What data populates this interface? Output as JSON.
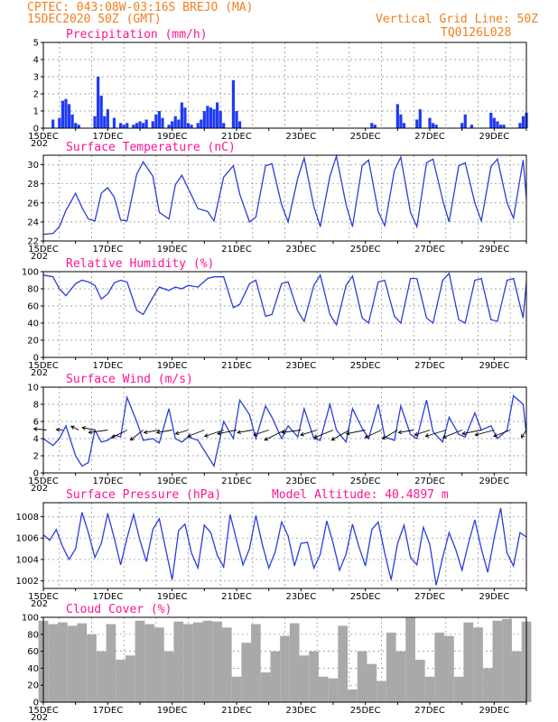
{
  "header": {
    "line1_left": "CPTEC:  043:08W-03:16S  BREJO (MA)",
    "line2_left": "15DEC2020 50Z (GMT)",
    "line1_right": "Vertical Grid Line: 50Z",
    "line2_right": "TQ0126L028"
  },
  "x_axis": {
    "day_start": 15,
    "day_end": 30,
    "tick_labels": [
      "15DEC",
      "17DEC",
      "19DEC",
      "21DEC",
      "23DEC",
      "25DEC",
      "27DEC",
      "29DEC"
    ],
    "tick_days": [
      15,
      17,
      19,
      21,
      23,
      25,
      27,
      29
    ],
    "year_fragment": "202"
  },
  "colors": {
    "line": "#2a3fd9",
    "precip": "#1f3bf5",
    "cloud": "#a9a9a9",
    "header": "#f08020",
    "title": "#ff1493"
  },
  "chart_data": [
    {
      "type": "bar",
      "title": "Precipitation (mm/h)",
      "ylim": [
        0,
        5
      ],
      "yticks": [
        0,
        1,
        2,
        3,
        4,
        5
      ],
      "x": [
        15.3,
        15.5,
        15.6,
        15.7,
        15.8,
        15.9,
        16.0,
        16.1,
        16.6,
        16.7,
        16.8,
        16.9,
        17.0,
        17.2,
        17.4,
        17.5,
        17.6,
        17.8,
        17.9,
        18.0,
        18.1,
        18.2,
        18.4,
        18.5,
        18.6,
        18.7,
        18.9,
        19.0,
        19.1,
        19.2,
        19.3,
        19.4,
        19.5,
        19.6,
        19.8,
        19.9,
        20.0,
        20.1,
        20.2,
        20.3,
        20.4,
        20.5,
        20.6,
        20.9,
        21.0,
        21.1,
        25.2,
        25.3,
        26.0,
        26.1,
        26.2,
        26.6,
        26.7,
        27.0,
        27.1,
        27.2,
        28.0,
        28.1,
        28.3,
        28.9,
        29.0,
        29.1,
        29.2,
        29.3,
        29.8,
        29.9,
        30.0
      ],
      "values": [
        0.5,
        0.6,
        1.6,
        1.7,
        1.4,
        0.8,
        0.3,
        0.2,
        0.7,
        3.0,
        1.9,
        0.7,
        1.1,
        0.6,
        0.3,
        0.2,
        0.3,
        0.2,
        0.3,
        0.4,
        0.3,
        0.5,
        0.4,
        0.8,
        1.0,
        0.6,
        0.2,
        0.4,
        0.7,
        0.5,
        1.5,
        1.2,
        0.3,
        0.2,
        0.3,
        0.5,
        1.0,
        1.3,
        1.2,
        1.1,
        1.5,
        1.0,
        0.3,
        2.8,
        1.0,
        0.4,
        0.3,
        0.2,
        1.4,
        0.8,
        0.3,
        0.5,
        1.1,
        0.6,
        0.3,
        0.2,
        0.3,
        0.8,
        0.2,
        0.9,
        0.6,
        0.4,
        0.2,
        0.2,
        0.3,
        0.7,
        0.9
      ]
    },
    {
      "type": "line",
      "title": "Surface Temperature (nC)",
      "ylim": [
        22,
        31
      ],
      "yticks": [
        22,
        24,
        26,
        28,
        30
      ],
      "x": [
        15.0,
        15.3,
        15.5,
        15.7,
        16.0,
        16.2,
        16.4,
        16.6,
        16.8,
        17.0,
        17.2,
        17.4,
        17.6,
        17.9,
        18.1,
        18.4,
        18.6,
        18.9,
        19.1,
        19.3,
        19.5,
        19.8,
        20.1,
        20.3,
        20.6,
        20.9,
        21.1,
        21.4,
        21.6,
        21.9,
        22.1,
        22.4,
        22.6,
        22.9,
        23.1,
        23.4,
        23.6,
        23.9,
        24.1,
        24.4,
        24.6,
        24.9,
        25.1,
        25.4,
        25.6,
        25.9,
        26.1,
        26.4,
        26.6,
        26.9,
        27.1,
        27.4,
        27.6,
        27.9,
        28.1,
        28.4,
        28.6,
        28.9,
        29.1,
        29.4,
        29.6,
        29.9,
        30.0
      ],
      "values": [
        22.7,
        22.8,
        23.5,
        25.2,
        27.0,
        25.5,
        24.3,
        24.1,
        27.0,
        27.6,
        26.6,
        24.2,
        24.1,
        29.0,
        30.3,
        28.8,
        25.0,
        24.3,
        27.9,
        28.9,
        27.5,
        25.4,
        25.1,
        24.1,
        28.7,
        29.9,
        26.9,
        24.0,
        24.5,
        29.9,
        30.1,
        25.8,
        24.0,
        28.6,
        30.7,
        25.6,
        23.5,
        28.8,
        30.9,
        25.8,
        23.5,
        29.9,
        30.5,
        25.1,
        23.6,
        29.4,
        30.8,
        25.0,
        23.5,
        30.2,
        30.6,
        26.3,
        24.0,
        29.9,
        30.2,
        26.0,
        24.1,
        29.8,
        30.6,
        26.0,
        24.4,
        30.5,
        26.5
      ]
    },
    {
      "type": "line",
      "title": "Relative Humidity (%)",
      "ylim": [
        0,
        100
      ],
      "yticks": [
        0,
        20,
        40,
        60,
        80,
        100
      ],
      "x": [
        15.0,
        15.3,
        15.5,
        15.7,
        16.0,
        16.2,
        16.4,
        16.6,
        16.8,
        17.0,
        17.2,
        17.4,
        17.6,
        17.9,
        18.1,
        18.4,
        18.6,
        18.9,
        19.1,
        19.3,
        19.5,
        19.8,
        20.1,
        20.3,
        20.6,
        20.9,
        21.1,
        21.4,
        21.6,
        21.9,
        22.1,
        22.4,
        22.6,
        22.9,
        23.1,
        23.4,
        23.6,
        23.9,
        24.1,
        24.4,
        24.6,
        24.9,
        25.1,
        25.4,
        25.6,
        25.9,
        26.1,
        26.4,
        26.6,
        26.9,
        27.1,
        27.4,
        27.6,
        27.9,
        28.1,
        28.4,
        28.6,
        28.9,
        29.1,
        29.4,
        29.6,
        29.9,
        30.0
      ],
      "values": [
        96,
        94,
        80,
        72,
        86,
        90,
        88,
        84,
        68,
        74,
        87,
        90,
        88,
        55,
        50,
        70,
        82,
        78,
        82,
        80,
        84,
        82,
        92,
        94,
        94,
        58,
        62,
        86,
        90,
        48,
        50,
        86,
        88,
        54,
        42,
        84,
        96,
        50,
        38,
        84,
        95,
        46,
        40,
        88,
        90,
        48,
        40,
        92,
        92,
        46,
        40,
        90,
        98,
        44,
        40,
        90,
        92,
        44,
        42,
        90,
        92,
        46,
        88
      ]
    },
    {
      "type": "line",
      "title": "Surface Wind (m/s)",
      "ylim": [
        0,
        10
      ],
      "yticks": [
        0,
        2,
        4,
        6,
        8,
        10
      ],
      "x": [
        15.0,
        15.3,
        15.5,
        15.7,
        16.0,
        16.2,
        16.4,
        16.6,
        16.8,
        17.0,
        17.2,
        17.4,
        17.6,
        17.9,
        18.1,
        18.4,
        18.6,
        18.9,
        19.1,
        19.3,
        19.5,
        19.8,
        20.1,
        20.3,
        20.6,
        20.9,
        21.1,
        21.4,
        21.6,
        21.9,
        22.1,
        22.4,
        22.6,
        22.9,
        23.1,
        23.4,
        23.6,
        23.9,
        24.1,
        24.4,
        24.6,
        24.9,
        25.1,
        25.4,
        25.6,
        25.9,
        26.1,
        26.4,
        26.6,
        26.9,
        27.1,
        27.4,
        27.6,
        27.9,
        28.1,
        28.4,
        28.6,
        28.9,
        29.1,
        29.4,
        29.6,
        29.9,
        30.0
      ],
      "values": [
        4.0,
        3.2,
        4.0,
        5.5,
        2.0,
        0.8,
        1.2,
        5.0,
        3.6,
        3.8,
        4.4,
        4.2,
        8.8,
        6.0,
        3.8,
        4.0,
        3.5,
        7.5,
        4.0,
        3.6,
        4.2,
        3.8,
        2.0,
        0.8,
        6.0,
        4.0,
        8.5,
        6.8,
        4.0,
        7.8,
        6.5,
        4.0,
        5.5,
        4.2,
        7.5,
        4.0,
        3.8,
        8.0,
        5.0,
        3.6,
        7.5,
        5.2,
        4.0,
        8.0,
        4.2,
        3.8,
        7.8,
        4.5,
        4.0,
        8.5,
        4.8,
        3.6,
        6.5,
        4.5,
        4.2,
        7.0,
        5.0,
        5.5,
        4.0,
        5.0,
        9.0,
        8.0,
        4.5
      ],
      "arrows": {
        "x": [
          15.1,
          15.6,
          16.1,
          16.6,
          17.0,
          17.6,
          18.1,
          18.6,
          19.0,
          19.5,
          20.0,
          20.6,
          21.0,
          21.5,
          22.0,
          22.5,
          23.0,
          23.5,
          24.0,
          24.5,
          25.0,
          25.5,
          26.0,
          26.5,
          27.0,
          27.5,
          28.0,
          28.6,
          29.0,
          29.5,
          30.0
        ],
        "u": [
          -1,
          -0.5,
          -0.6,
          -1,
          -1.5,
          -1.2,
          -1,
          -1.2,
          -1.2,
          -1,
          -1.3,
          -1.5,
          -1.5,
          -1.2,
          -1.2,
          -1.6,
          -1.5,
          -1.3,
          -1.5,
          -1.4,
          -1.5,
          -1.3,
          -1.2,
          -1.2,
          -1.2,
          -1.6,
          -1.5,
          -1.5,
          -1.5,
          -1.3,
          -0.4
        ],
        "v": [
          0.1,
          0.05,
          0.3,
          0.2,
          -0.2,
          -0.6,
          -0.8,
          -0.2,
          -0.2,
          -0.3,
          -0.5,
          -0.5,
          -0.3,
          -0.2,
          -0.4,
          -0.8,
          -0.2,
          -0.4,
          -0.6,
          -0.8,
          -0.3,
          -0.6,
          -0.7,
          -0.2,
          -0.4,
          -0.5,
          -0.6,
          -0.3,
          -0.4,
          -0.5,
          -0.6
        ]
      }
    },
    {
      "type": "line",
      "title": "Surface Pressure (hPa)",
      "annotation": "Model Altitude: 40.4897 m",
      "ylim": [
        1001.3,
        1009.3
      ],
      "yticks": [
        1002,
        1004,
        1006,
        1008
      ],
      "x": [
        15.0,
        15.2,
        15.4,
        15.6,
        15.8,
        16.0,
        16.2,
        16.4,
        16.6,
        16.8,
        17.0,
        17.2,
        17.4,
        17.6,
        17.8,
        18.0,
        18.2,
        18.4,
        18.6,
        18.8,
        19.0,
        19.2,
        19.4,
        19.6,
        19.8,
        20.0,
        20.2,
        20.4,
        20.6,
        20.8,
        21.0,
        21.2,
        21.4,
        21.6,
        21.8,
        22.0,
        22.2,
        22.4,
        22.6,
        22.8,
        23.0,
        23.2,
        23.4,
        23.6,
        23.8,
        24.0,
        24.2,
        24.4,
        24.6,
        24.8,
        25.0,
        25.2,
        25.4,
        25.6,
        25.8,
        26.0,
        26.2,
        26.4,
        26.6,
        26.8,
        27.0,
        27.2,
        27.4,
        27.6,
        27.8,
        28.0,
        28.2,
        28.4,
        28.6,
        28.8,
        29.0,
        29.2,
        29.4,
        29.6,
        29.8,
        30.0
      ],
      "values": [
        1006.3,
        1005.8,
        1006.8,
        1005.2,
        1004.0,
        1005.0,
        1008.4,
        1006.5,
        1004.2,
        1005.5,
        1008.3,
        1006.0,
        1003.5,
        1006.0,
        1008.2,
        1005.8,
        1003.8,
        1006.8,
        1007.8,
        1005.0,
        1002.1,
        1006.7,
        1007.3,
        1004.6,
        1003.2,
        1007.2,
        1006.5,
        1004.4,
        1003.3,
        1008.2,
        1005.8,
        1003.5,
        1005.0,
        1008.1,
        1005.4,
        1003.2,
        1004.7,
        1007.5,
        1006.2,
        1003.4,
        1005.5,
        1005.6,
        1003.2,
        1004.5,
        1007.6,
        1005.5,
        1003.0,
        1004.5,
        1007.3,
        1005.2,
        1003.4,
        1006.8,
        1007.5,
        1004.6,
        1002.1,
        1005.5,
        1007.2,
        1004.2,
        1003.5,
        1007.0,
        1005.4,
        1001.6,
        1004.2,
        1006.5,
        1005.0,
        1003.0,
        1005.5,
        1007.7,
        1005.0,
        1002.8,
        1006.0,
        1008.8,
        1004.6,
        1003.4,
        1006.5,
        1006.1
      ]
    },
    {
      "type": "area",
      "title": "Cloud Cover (%)",
      "ylim": [
        0,
        100
      ],
      "yticks": [
        0,
        20,
        40,
        60,
        80,
        100
      ],
      "x": [
        15.0,
        15.3,
        15.6,
        15.9,
        16.2,
        16.5,
        16.8,
        17.1,
        17.4,
        17.7,
        18.0,
        18.3,
        18.6,
        18.9,
        19.2,
        19.5,
        19.8,
        20.1,
        20.4,
        20.7,
        21.0,
        21.3,
        21.6,
        21.9,
        22.2,
        22.5,
        22.8,
        23.1,
        23.4,
        23.7,
        24.0,
        24.3,
        24.6,
        24.9,
        25.2,
        25.5,
        25.8,
        26.1,
        26.4,
        26.7,
        27.0,
        27.3,
        27.6,
        27.9,
        28.2,
        28.5,
        28.8,
        29.1,
        29.4,
        29.7,
        30.0
      ],
      "values": [
        96,
        92,
        94,
        90,
        93,
        80,
        60,
        92,
        50,
        55,
        96,
        92,
        88,
        60,
        95,
        92,
        94,
        96,
        95,
        88,
        30,
        70,
        92,
        35,
        60,
        78,
        93,
        55,
        60,
        30,
        28,
        90,
        15,
        60,
        45,
        25,
        82,
        60,
        100,
        50,
        30,
        82,
        78,
        30,
        94,
        88,
        40,
        96,
        98,
        60,
        95
      ]
    }
  ]
}
